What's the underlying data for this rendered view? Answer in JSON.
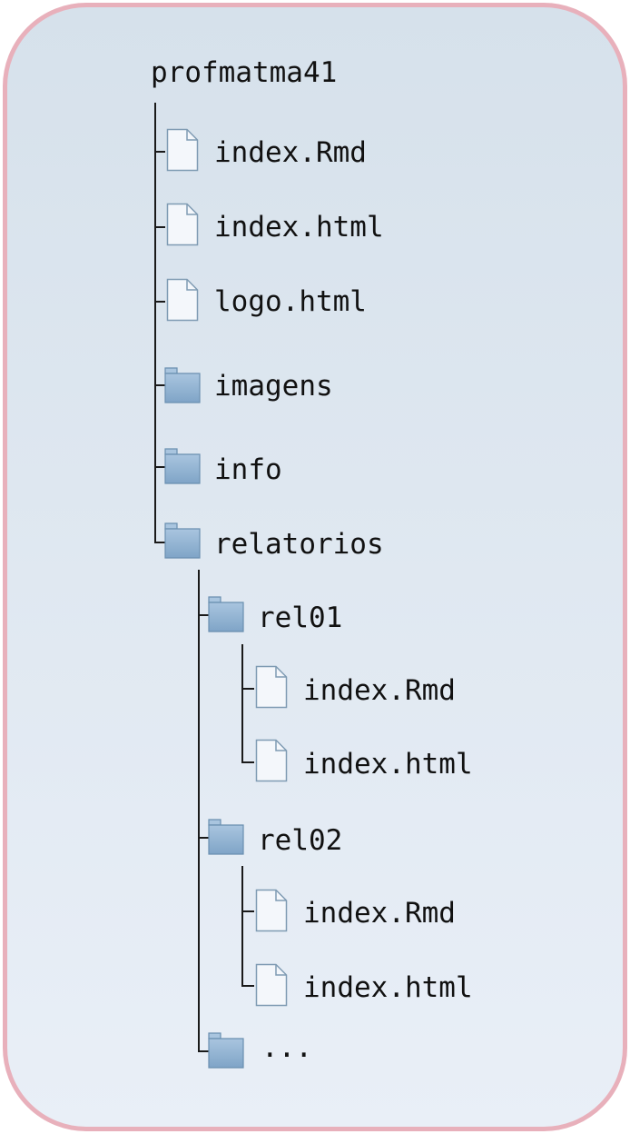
{
  "tree": {
    "root": {
      "name": "profmatma41"
    },
    "file_index_rmd": {
      "name": "index.Rmd",
      "icon": "file-icon"
    },
    "file_index_html": {
      "name": "index.html",
      "icon": "file-icon"
    },
    "file_logo_html": {
      "name": "logo.html",
      "icon": "file-icon"
    },
    "folder_imagens": {
      "name": "imagens",
      "icon": "folder-icon"
    },
    "folder_info": {
      "name": "info",
      "icon": "folder-icon"
    },
    "folder_relatorios": {
      "name": "relatorios",
      "icon": "folder-icon",
      "rel01": {
        "name": "rel01",
        "icon": "folder-icon",
        "files": [
          {
            "name": "index.Rmd",
            "icon": "file-icon"
          },
          {
            "name": "index.html",
            "icon": "file-icon"
          }
        ]
      },
      "rel02": {
        "name": "rel02",
        "icon": "folder-icon",
        "files": [
          {
            "name": "index.Rmd",
            "icon": "file-icon"
          },
          {
            "name": "index.html",
            "icon": "file-icon"
          }
        ]
      },
      "more": {
        "name": "...",
        "icon": "folder-icon"
      }
    }
  },
  "colors": {
    "frame_border": "#e8b0bb",
    "background_top": "#d6e1eb",
    "background_bottom": "#e9eff7",
    "tree_line": "#1a1a1a",
    "file_fill": "#f4f7fb",
    "file_stroke": "#7f9bb3",
    "folder_fill": "#8fb2d3",
    "folder_stroke": "#6a8fb0",
    "text": "#111111"
  }
}
